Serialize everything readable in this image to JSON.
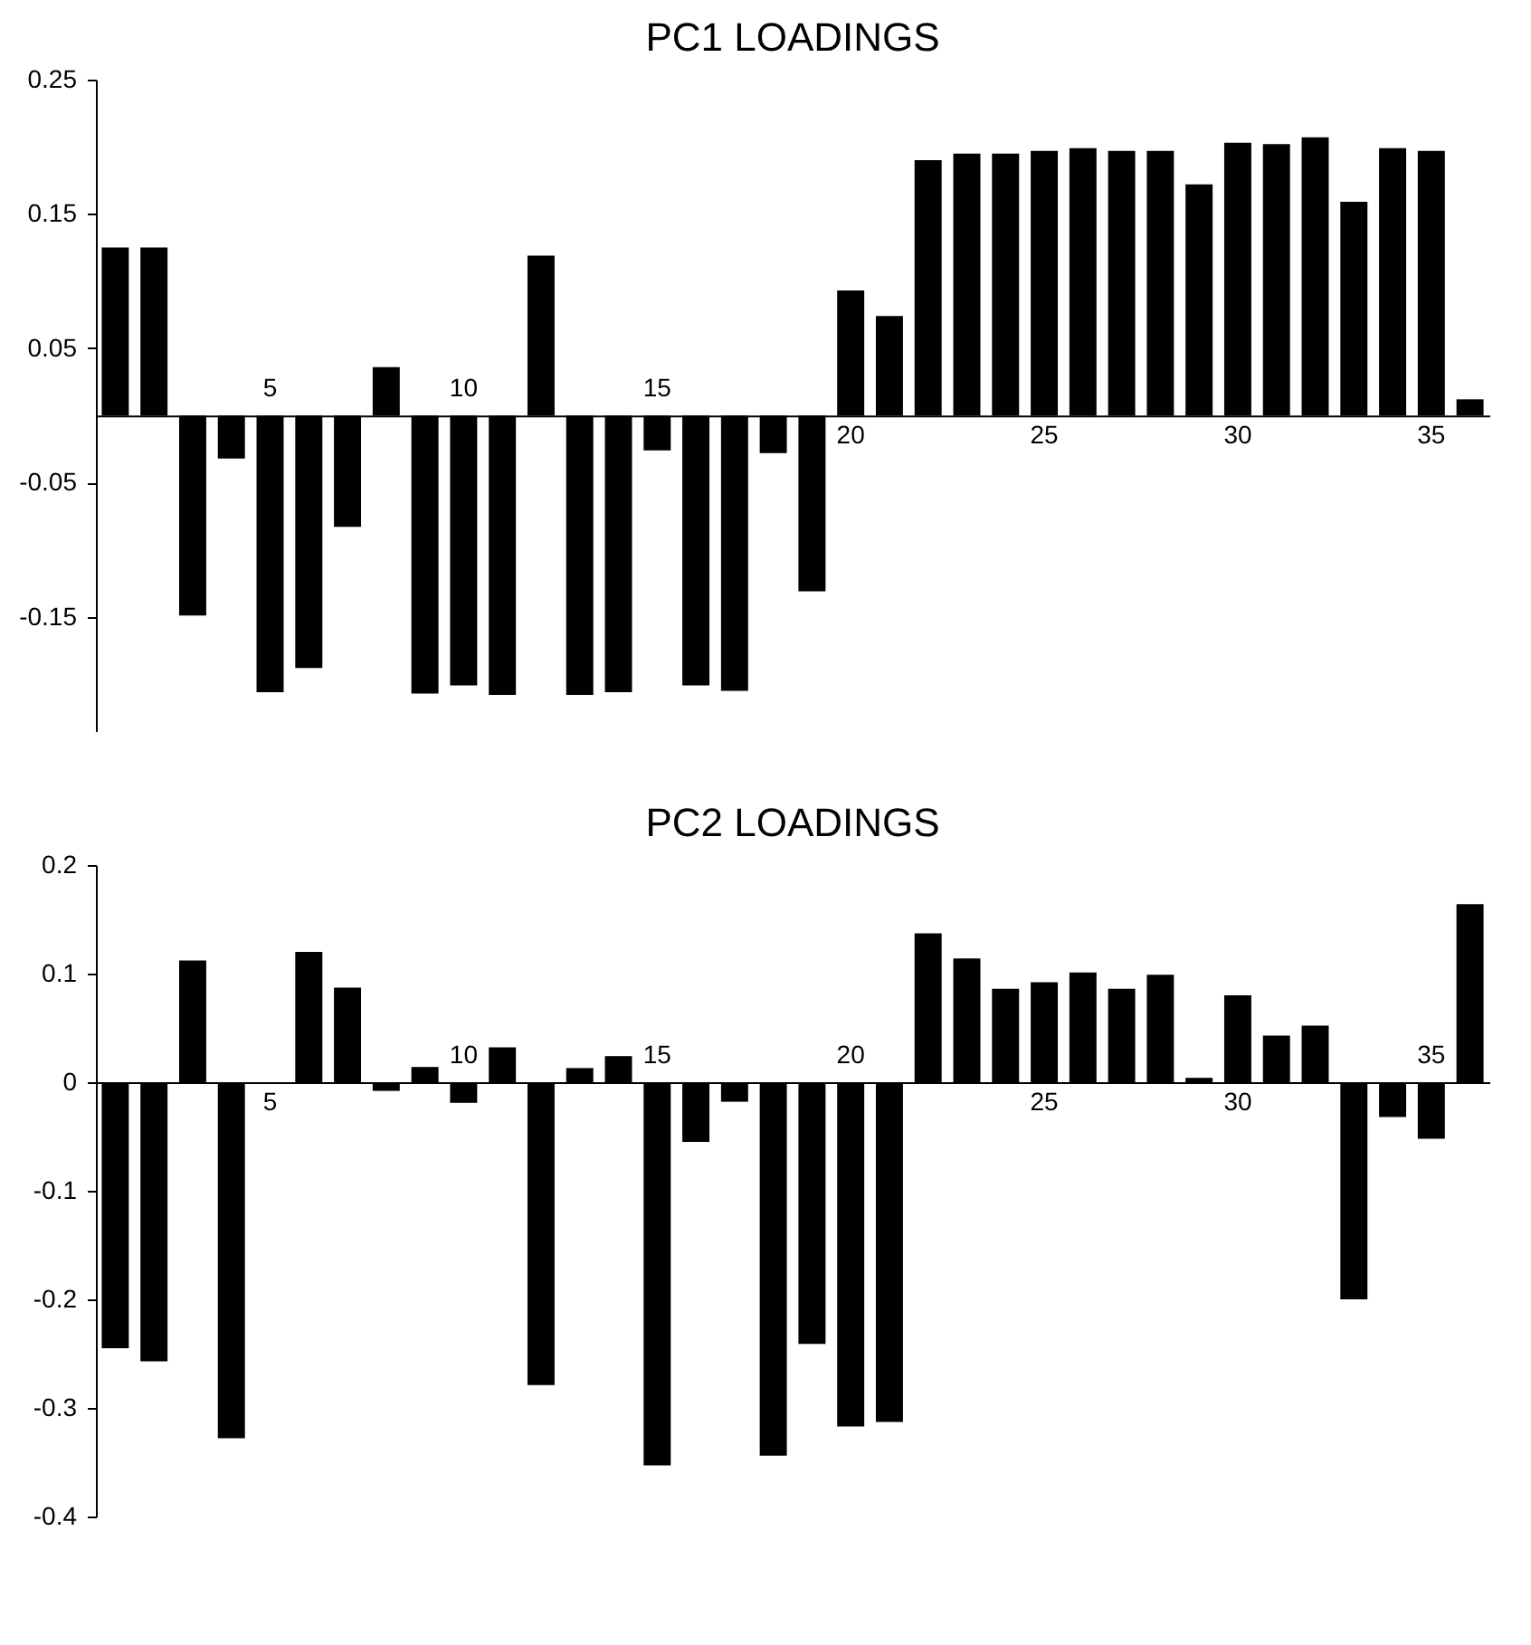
{
  "chart_data": [
    {
      "type": "bar",
      "title": "PC1 LOADINGS",
      "color": "#000000",
      "categories": [
        null,
        null,
        null,
        null,
        "5",
        null,
        null,
        null,
        null,
        "10",
        null,
        null,
        null,
        null,
        "15",
        null,
        null,
        null,
        null,
        "20",
        null,
        null,
        null,
        null,
        "25",
        null,
        null,
        null,
        null,
        "30",
        null,
        null,
        null,
        null,
        "35",
        null
      ],
      "values": [
        0.125,
        0.125,
        -0.149,
        -0.032,
        -0.206,
        -0.188,
        -0.083,
        0.036,
        -0.207,
        -0.201,
        -0.208,
        0.119,
        -0.208,
        -0.206,
        -0.026,
        -0.201,
        -0.205,
        -0.028,
        -0.131,
        0.093,
        0.074,
        0.19,
        0.195,
        0.195,
        0.197,
        0.199,
        0.197,
        0.197,
        0.172,
        0.203,
        0.202,
        0.207,
        0.159,
        0.199,
        0.197,
        0.012
      ],
      "ylim": [
        -0.235,
        0.25
      ],
      "yticks": [
        -0.15,
        -0.05,
        0.05,
        0.15,
        0.25
      ],
      "grid": false
    },
    {
      "type": "bar",
      "title": "PC2 LOADINGS",
      "color": "#000000",
      "categories": [
        null,
        null,
        null,
        null,
        "5",
        null,
        null,
        null,
        null,
        "10",
        null,
        null,
        null,
        null,
        "15",
        null,
        null,
        null,
        null,
        "20",
        null,
        null,
        null,
        null,
        "25",
        null,
        null,
        null,
        null,
        "30",
        null,
        null,
        null,
        null,
        "35",
        null
      ],
      "values": [
        -0.245,
        -0.257,
        0.112,
        -0.328,
        0,
        0.12,
        0.087,
        -0.008,
        0.014,
        -0.019,
        0.032,
        -0.279,
        0.013,
        0.024,
        -0.353,
        -0.055,
        -0.018,
        -0.344,
        -0.241,
        -0.317,
        -0.313,
        0.137,
        0.114,
        0.086,
        0.092,
        0.101,
        0.086,
        0.099,
        0.004,
        0.08,
        0.043,
        0.052,
        -0.2,
        -0.032,
        -0.052,
        0.164
      ],
      "ylim": [
        -0.4,
        0.2
      ],
      "yticks": [
        -0.4,
        -0.3,
        -0.2,
        -0.1,
        0,
        0.1,
        0.2
      ],
      "grid": false
    }
  ]
}
